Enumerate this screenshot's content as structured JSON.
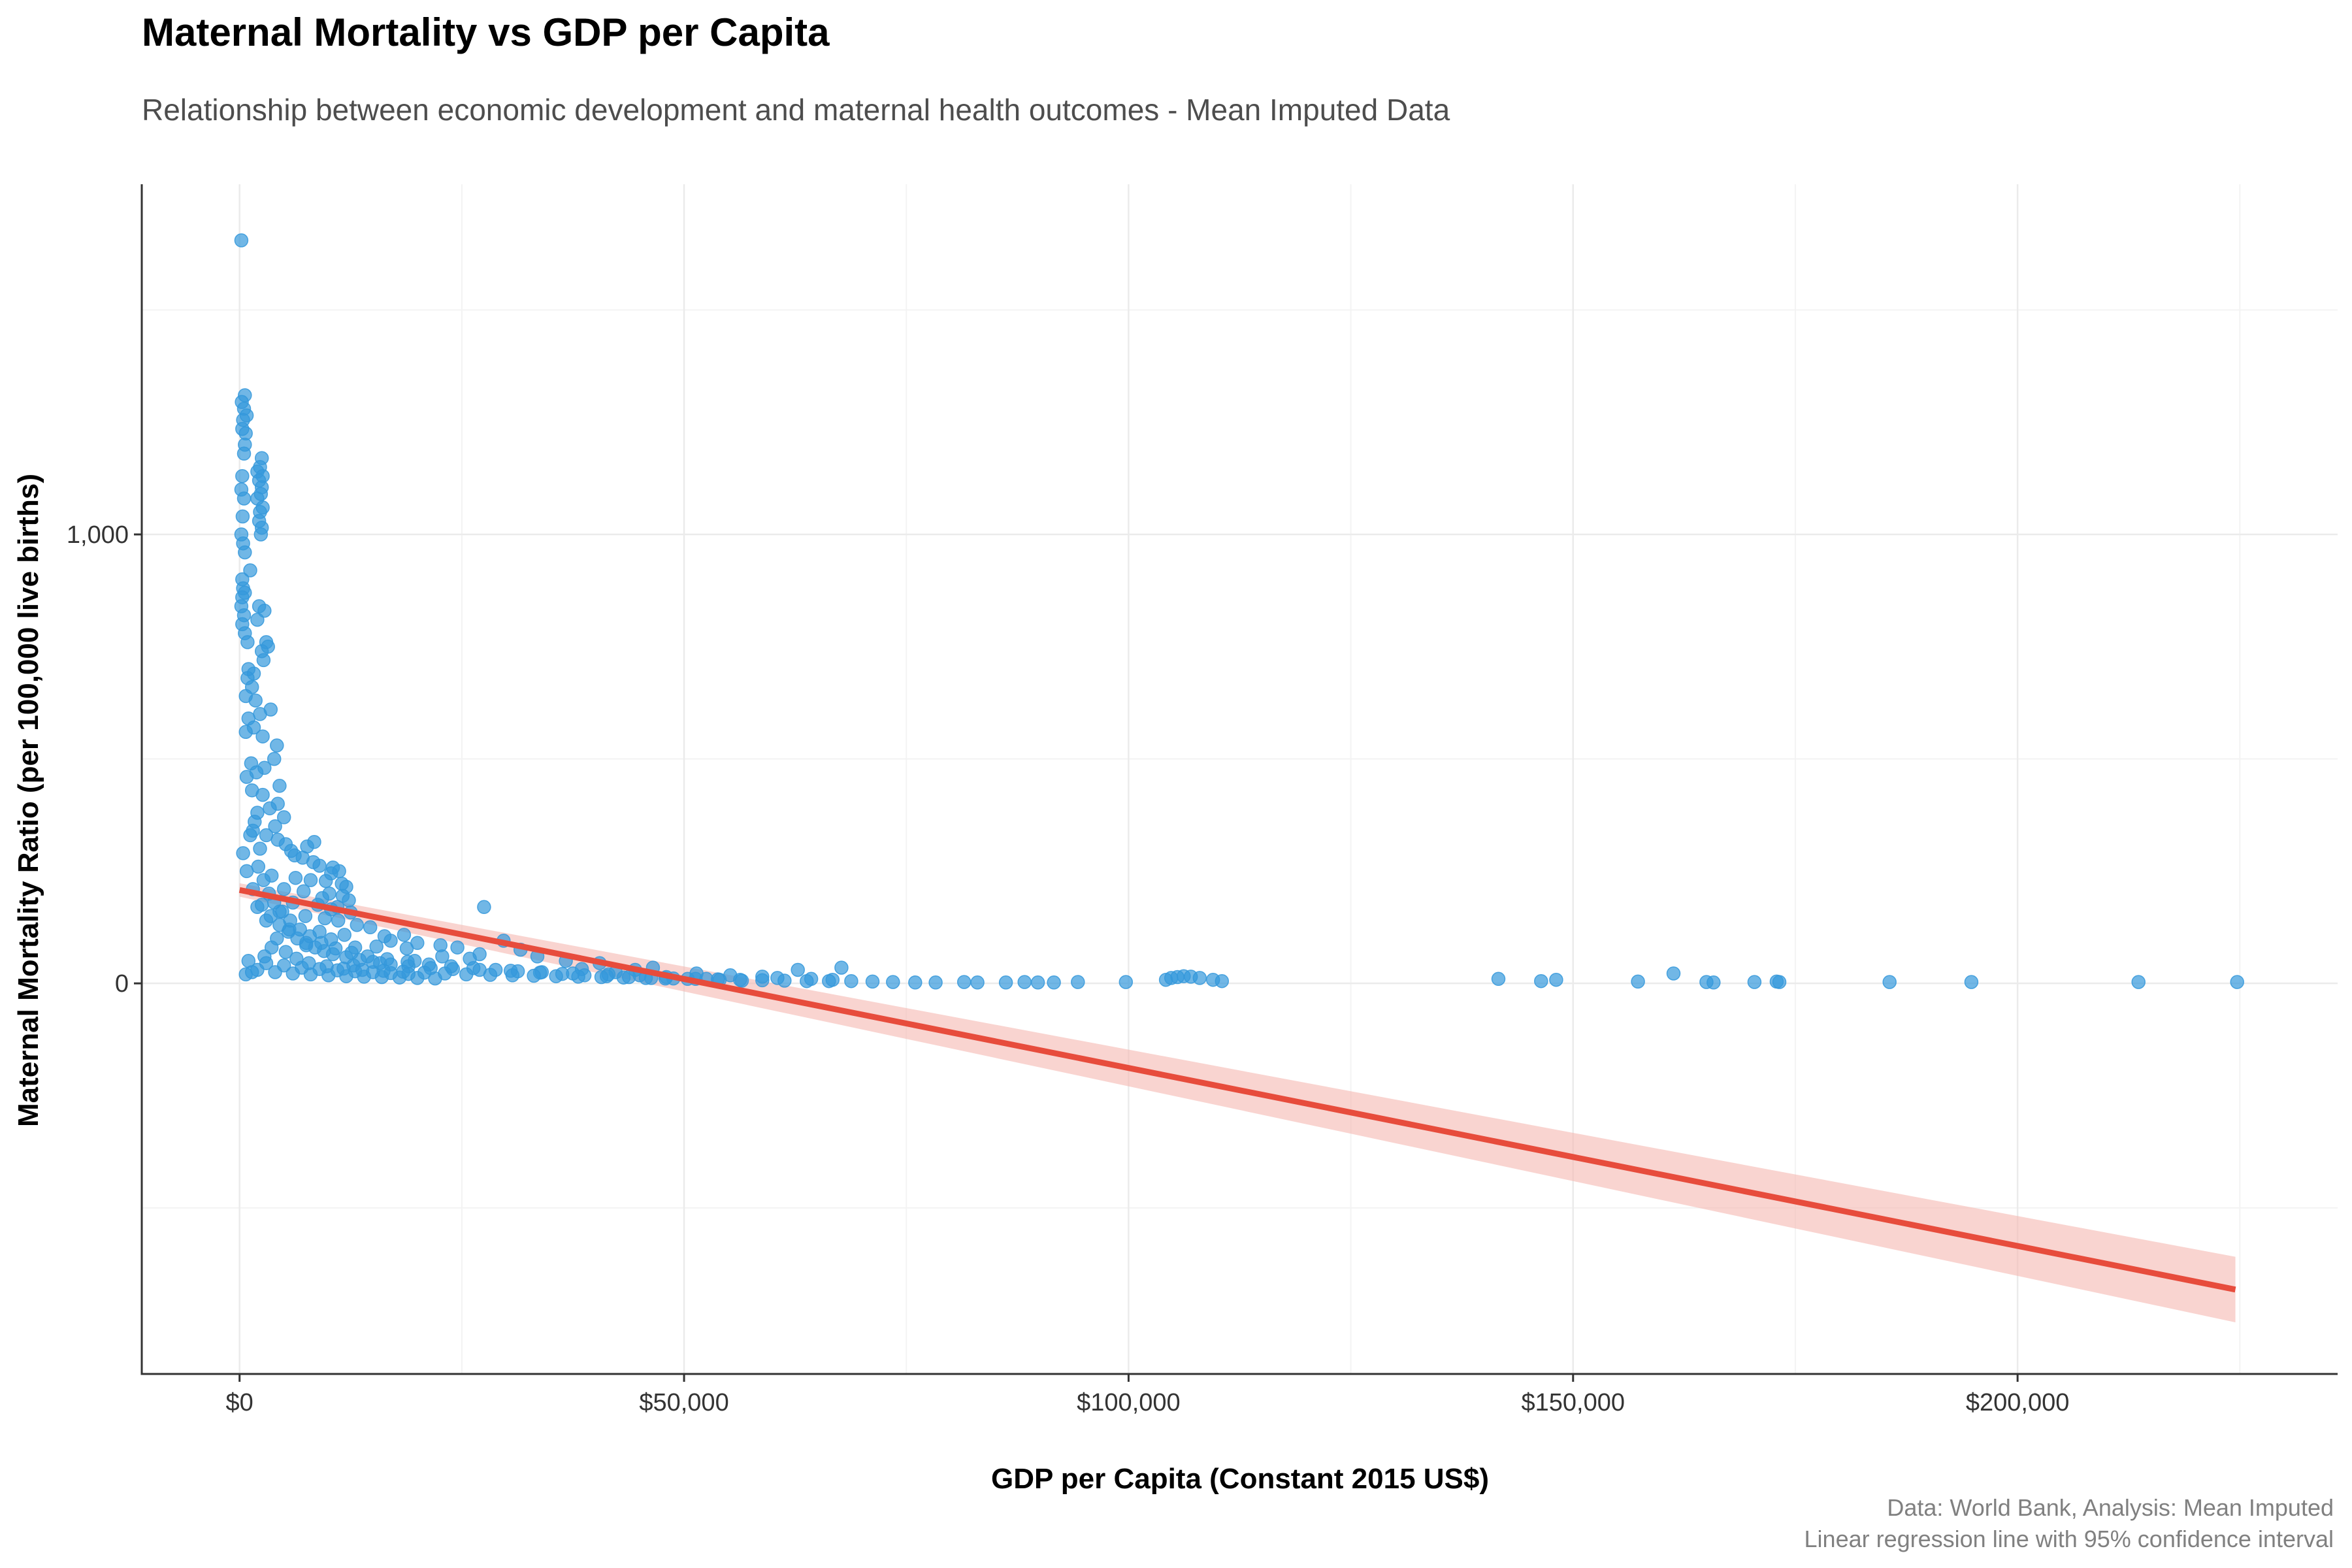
{
  "chart_data": {
    "type": "scatter",
    "title": "Maternal Mortality vs GDP per Capita",
    "subtitle": "Relationship between economic development and maternal health outcomes - Mean Imputed Data",
    "xlabel": "GDP per Capita (Constant 2015 US$)",
    "ylabel": "Maternal Mortality Ratio (per 100,000 live births)",
    "caption": [
      "Data: World Bank, Analysis: Mean Imputed",
      "Linear regression line with 95% confidence interval"
    ],
    "xlim": [
      -11000,
      236000
    ],
    "ylim": [
      -870,
      1780
    ],
    "x_ticks": [
      {
        "value": 0,
        "label": "$0"
      },
      {
        "value": 50000,
        "label": "$50,000"
      },
      {
        "value": 100000,
        "label": "$100,000"
      },
      {
        "value": 150000,
        "label": "$150,000"
      },
      {
        "value": 200000,
        "label": "$200,000"
      }
    ],
    "x_minor_gridlines": [
      25000,
      75000,
      125000,
      175000,
      225000
    ],
    "y_ticks": [
      {
        "value": 0,
        "label": "0"
      },
      {
        "value": 1000,
        "label": "1,000"
      }
    ],
    "y_minor_gridlines": [
      -500,
      500,
      1500
    ],
    "grid": true,
    "legend": "none",
    "colors": {
      "points": "#3498db",
      "regression_line": "#e74c3c",
      "confidence_band": "#f5b7b1",
      "grid": "#ebebeb",
      "axis": "#333333"
    },
    "regression": {
      "x": [
        0,
        224500
      ],
      "y": [
        208,
        -682
      ],
      "ci_lower": [
        193,
        -755
      ],
      "ci_upper": [
        223,
        -609
      ]
    },
    "series": [
      {
        "points": [
          [
            200,
            1655
          ],
          [
            600,
            1310
          ],
          [
            250,
            1295
          ],
          [
            500,
            1280
          ],
          [
            800,
            1265
          ],
          [
            400,
            1255
          ],
          [
            300,
            1235
          ],
          [
            700,
            1225
          ],
          [
            600,
            1200
          ],
          [
            500,
            1180
          ],
          [
            2500,
            1170
          ],
          [
            2300,
            1150
          ],
          [
            2000,
            1140
          ],
          [
            2600,
            1130
          ],
          [
            2200,
            1120
          ],
          [
            2500,
            1105
          ],
          [
            2400,
            1090
          ],
          [
            2000,
            1080
          ],
          [
            2600,
            1060
          ],
          [
            2300,
            1050
          ],
          [
            2200,
            1030
          ],
          [
            2500,
            1015
          ],
          [
            2400,
            1000
          ],
          [
            300,
            1130
          ],
          [
            200,
            1100
          ],
          [
            500,
            1080
          ],
          [
            350,
            1040
          ],
          [
            200,
            1000
          ],
          [
            400,
            980
          ],
          [
            600,
            960
          ],
          [
            300,
            900
          ],
          [
            400,
            880
          ],
          [
            600,
            870
          ],
          [
            300,
            860
          ],
          [
            200,
            840
          ],
          [
            500,
            820
          ],
          [
            300,
            800
          ],
          [
            600,
            780
          ],
          [
            1200,
            920
          ],
          [
            900,
            760
          ],
          [
            2200,
            840
          ],
          [
            2800,
            830
          ],
          [
            2000,
            810
          ],
          [
            3000,
            760
          ],
          [
            3200,
            750
          ],
          [
            2500,
            740
          ],
          [
            2700,
            720
          ],
          [
            1000,
            700
          ],
          [
            1600,
            690
          ],
          [
            900,
            680
          ],
          [
            1400,
            660
          ],
          [
            700,
            640
          ],
          [
            1800,
            630
          ],
          [
            3500,
            610
          ],
          [
            2300,
            600
          ],
          [
            1000,
            590
          ],
          [
            1600,
            570
          ],
          [
            700,
            560
          ],
          [
            2600,
            550
          ],
          [
            4200,
            530
          ],
          [
            3900,
            500
          ],
          [
            1300,
            490
          ],
          [
            2800,
            480
          ],
          [
            1900,
            470
          ],
          [
            800,
            460
          ],
          [
            4500,
            440
          ],
          [
            1400,
            430
          ],
          [
            2600,
            420
          ],
          [
            4300,
            400
          ],
          [
            3400,
            390
          ],
          [
            2000,
            380
          ],
          [
            5000,
            370
          ],
          [
            4000,
            350
          ],
          [
            1500,
            340
          ],
          [
            3000,
            330
          ],
          [
            4300,
            320
          ],
          [
            5200,
            310
          ],
          [
            7600,
            305
          ],
          [
            8400,
            315
          ],
          [
            2300,
            300
          ],
          [
            5800,
            295
          ],
          [
            6200,
            285
          ],
          [
            7100,
            280
          ],
          [
            8300,
            270
          ],
          [
            9000,
            262
          ],
          [
            10500,
            258
          ],
          [
            10300,
            245
          ],
          [
            11200,
            250
          ],
          [
            3600,
            240
          ],
          [
            6300,
            235
          ],
          [
            8000,
            230
          ],
          [
            9700,
            228
          ],
          [
            11500,
            222
          ],
          [
            12000,
            215
          ],
          [
            5000,
            210
          ],
          [
            7200,
            205
          ],
          [
            10100,
            200
          ],
          [
            11600,
            195
          ],
          [
            9300,
            190
          ],
          [
            12300,
            185
          ],
          [
            6000,
            180
          ],
          [
            8800,
            175
          ],
          [
            11000,
            170
          ],
          [
            2000,
            170
          ],
          [
            4500,
            160
          ],
          [
            10300,
            165
          ],
          [
            12500,
            158
          ],
          [
            7400,
            150
          ],
          [
            9600,
            145
          ],
          [
            11100,
            140
          ],
          [
            13200,
            130
          ],
          [
            3000,
            140
          ],
          [
            14700,
            125
          ],
          [
            5600,
            120
          ],
          [
            9000,
            115
          ],
          [
            11800,
            108
          ],
          [
            16300,
            105
          ],
          [
            18500,
            108
          ],
          [
            4200,
            100
          ],
          [
            10300,
            98
          ],
          [
            17000,
            95
          ],
          [
            20000,
            90
          ],
          [
            22600,
            85
          ],
          [
            7500,
            85
          ],
          [
            13000,
            80
          ],
          [
            15400,
            82
          ],
          [
            18800,
            78
          ],
          [
            24500,
            80
          ],
          [
            27500,
            170
          ],
          [
            29700,
            95
          ],
          [
            31600,
            75
          ],
          [
            33500,
            60
          ],
          [
            27000,
            65
          ],
          [
            22800,
            60
          ],
          [
            25900,
            55
          ],
          [
            36700,
            50
          ],
          [
            40500,
            45
          ],
          [
            46500,
            35
          ],
          [
            44500,
            30
          ],
          [
            42300,
            25
          ],
          [
            19700,
            50
          ],
          [
            15800,
            45
          ],
          [
            12800,
            40
          ],
          [
            38500,
            32
          ],
          [
            62800,
            30
          ],
          [
            67700,
            35
          ],
          [
            51400,
            22
          ],
          [
            55200,
            18
          ],
          [
            58800,
            15
          ],
          [
            60500,
            12
          ],
          [
            64300,
            10
          ],
          [
            66700,
            8
          ],
          [
            68800,
            5
          ],
          [
            71200,
            4
          ],
          [
            73500,
            3
          ],
          [
            76000,
            2
          ],
          [
            78300,
            2
          ],
          [
            81500,
            3
          ],
          [
            83000,
            2
          ],
          [
            86200,
            2
          ],
          [
            88300,
            3
          ],
          [
            89800,
            2
          ],
          [
            91600,
            2
          ],
          [
            94300,
            3
          ],
          [
            99700,
            3
          ],
          [
            104200,
            8
          ],
          [
            104800,
            12
          ],
          [
            105500,
            14
          ],
          [
            106200,
            16
          ],
          [
            107000,
            15
          ],
          [
            108000,
            12
          ],
          [
            109500,
            8
          ],
          [
            110500,
            5
          ],
          [
            141600,
            10
          ],
          [
            146400,
            5
          ],
          [
            148100,
            8
          ],
          [
            157300,
            4
          ],
          [
            161300,
            22
          ],
          [
            165000,
            3
          ],
          [
            165800,
            2
          ],
          [
            170400,
            3
          ],
          [
            172900,
            4
          ],
          [
            173200,
            3
          ],
          [
            185600,
            3
          ],
          [
            194800,
            3
          ],
          [
            213600,
            3
          ],
          [
            224700,
            3
          ],
          [
            52500,
            10
          ],
          [
            54000,
            8
          ],
          [
            56500,
            6
          ],
          [
            48000,
            14
          ],
          [
            45000,
            18
          ],
          [
            41500,
            20
          ],
          [
            37500,
            22
          ],
          [
            34000,
            25
          ],
          [
            30500,
            28
          ],
          [
            27000,
            30
          ],
          [
            24000,
            32
          ],
          [
            21500,
            34
          ],
          [
            19000,
            38
          ],
          [
            17000,
            42
          ],
          [
            15000,
            48
          ],
          [
            13500,
            52
          ],
          [
            12000,
            58
          ],
          [
            10500,
            65
          ],
          [
            9500,
            72
          ],
          [
            8500,
            80
          ],
          [
            7500,
            90
          ],
          [
            6500,
            100
          ],
          [
            5500,
            115
          ],
          [
            4500,
            130
          ],
          [
            3500,
            150
          ],
          [
            2500,
            175
          ],
          [
            1500,
            210
          ],
          [
            800,
            250
          ],
          [
            400,
            290
          ],
          [
            1200,
            330
          ],
          [
            1700,
            360
          ],
          [
            2100,
            260
          ],
          [
            2700,
            230
          ],
          [
            3300,
            200
          ],
          [
            3900,
            180
          ],
          [
            4800,
            160
          ],
          [
            5700,
            140
          ],
          [
            6800,
            120
          ],
          [
            7900,
            105
          ],
          [
            9200,
            90
          ],
          [
            10800,
            78
          ],
          [
            12600,
            68
          ],
          [
            14400,
            60
          ],
          [
            16600,
            54
          ],
          [
            18900,
            48
          ],
          [
            21300,
            42
          ],
          [
            23800,
            38
          ],
          [
            26300,
            34
          ],
          [
            28800,
            30
          ],
          [
            31300,
            27
          ],
          [
            33800,
            24
          ],
          [
            36300,
            21
          ],
          [
            38800,
            18
          ],
          [
            41300,
            16
          ],
          [
            43800,
            14
          ],
          [
            46300,
            12
          ],
          [
            48800,
            11
          ],
          [
            51300,
            10
          ],
          [
            53800,
            9
          ],
          [
            56300,
            8
          ],
          [
            58800,
            7
          ],
          [
            61300,
            6
          ],
          [
            63800,
            5
          ],
          [
            66300,
            5
          ],
          [
            2000,
            30
          ],
          [
            4000,
            25
          ],
          [
            6000,
            22
          ],
          [
            8000,
            20
          ],
          [
            10000,
            18
          ],
          [
            12000,
            16
          ],
          [
            14000,
            15
          ],
          [
            16000,
            14
          ],
          [
            18000,
            13
          ],
          [
            20000,
            12
          ],
          [
            22000,
            11
          ],
          [
            1000,
            50
          ],
          [
            3000,
            45
          ],
          [
            5000,
            40
          ],
          [
            7000,
            35
          ],
          [
            9000,
            32
          ],
          [
            11000,
            29
          ],
          [
            13000,
            27
          ],
          [
            15000,
            25
          ],
          [
            17000,
            23
          ],
          [
            19000,
            21
          ],
          [
            700,
            20
          ],
          [
            1400,
            25
          ],
          [
            2800,
            60
          ],
          [
            3600,
            80
          ],
          [
            5200,
            70
          ],
          [
            6400,
            55
          ],
          [
            7800,
            45
          ],
          [
            9800,
            38
          ],
          [
            11700,
            33
          ],
          [
            13800,
            30
          ],
          [
            16200,
            28
          ],
          [
            18400,
            26
          ],
          [
            20800,
            24
          ],
          [
            23100,
            22
          ],
          [
            25500,
            20
          ],
          [
            28200,
            19
          ],
          [
            30700,
            18
          ],
          [
            33100,
            17
          ],
          [
            35600,
            16
          ],
          [
            38100,
            15
          ],
          [
            40700,
            14
          ],
          [
            43200,
            13
          ],
          [
            45700,
            12
          ],
          [
            47900,
            11
          ],
          [
            50400,
            10
          ]
        ]
      }
    ]
  }
}
